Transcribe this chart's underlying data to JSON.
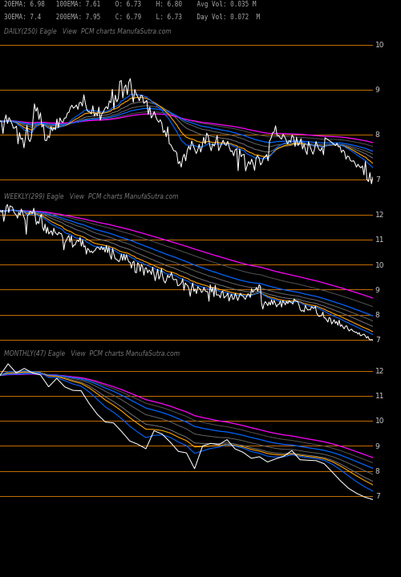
{
  "background_color": "#000000",
  "title_info": {
    "line1": "20EMA: 6.98   100EMA: 7.61    O: 6.73    H: 6.80    Avg Vol: 0.035 M",
    "line2": "30EMA: 7.4    200EMA: 7.95    C: 6.79    L: 6.73    Day Vol: 0.072  M"
  },
  "daily_label": "DAILY(250) Eagle   View  PCM charts ManufaSutra.com",
  "weekly_label": "WEEKLY(299) Eagle   View  PCM charts ManufaSutra.com",
  "monthly_label": "MONTHLY(47) Eagle   View  PCM charts ManufaSutra.com",
  "panels": [
    {
      "name": "daily",
      "ylim": [
        6.8,
        10.1
      ],
      "yticks": [
        7,
        8,
        9,
        10
      ],
      "hlines_orange": [
        7,
        8,
        9,
        10
      ]
    },
    {
      "name": "weekly",
      "ylim": [
        6.8,
        12.4
      ],
      "yticks": [
        7,
        8,
        9,
        10,
        11,
        12
      ],
      "hlines_orange": [
        7,
        8,
        9,
        10,
        11,
        12
      ]
    },
    {
      "name": "monthly",
      "ylim": [
        6.8,
        12.4
      ],
      "yticks": [
        7,
        8,
        9,
        10,
        11,
        12
      ],
      "hlines_orange": [
        7,
        8,
        9,
        10,
        11,
        12
      ]
    }
  ],
  "orange_line": "#c87000",
  "price_color": "#ffffff",
  "ema_magenta": "#ff00ff",
  "ema_blue": "#0066ff",
  "ema_orange": "#ffa500",
  "ema_gray1": "#555555",
  "ema_gray2": "#666666",
  "ema_gray3": "#777777",
  "ema_gray4": "#888888"
}
